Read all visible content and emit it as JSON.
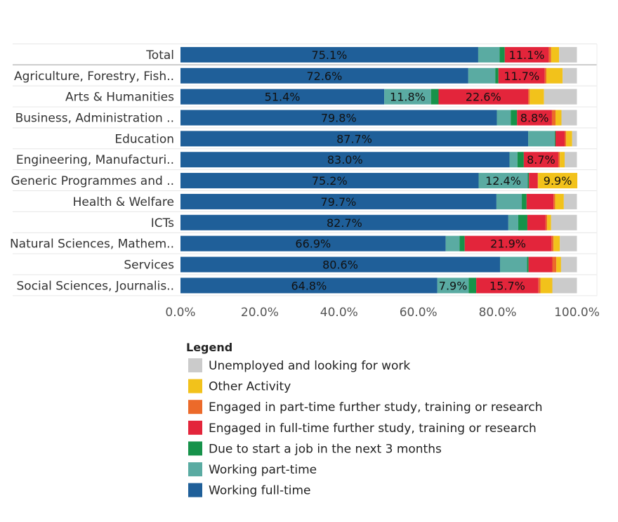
{
  "chart_data": {
    "type": "bar",
    "orientation": "horizontal",
    "stacked": true,
    "title": "",
    "xlabel": "",
    "ylabel": "",
    "xlim": [
      0,
      100
    ],
    "x_ticks": [
      "0.0%",
      "20.0%",
      "40.0%",
      "60.0%",
      "80.0%",
      "100.0%"
    ],
    "categories": [
      "Total",
      "Agriculture, Forestry, Fish..",
      "Arts & Humanities",
      "Business, Administration ..",
      "Education",
      "Engineering, Manufacturi..",
      "Generic Programmes and ..",
      "Health & Welfare",
      "ICTs",
      "Natural Sciences, Mathem..",
      "Services",
      "Social Sciences, Journalis.."
    ],
    "series": [
      {
        "name": "Working full-time",
        "color": "#1f5f99",
        "values": [
          75.1,
          72.6,
          51.4,
          79.8,
          87.7,
          83.0,
          75.2,
          79.7,
          82.7,
          66.9,
          80.6,
          64.8
        ]
      },
      {
        "name": "Working part-time",
        "color": "#5aaba2",
        "values": [
          5.4,
          6.8,
          11.8,
          3.5,
          6.7,
          2.0,
          12.4,
          6.4,
          2.5,
          3.5,
          6.8,
          7.9
        ]
      },
      {
        "name": "Due to start a job in the next 3 months",
        "color": "#16924a",
        "values": [
          1.3,
          0.8,
          1.9,
          1.6,
          0.2,
          1.6,
          0.3,
          1.2,
          2.3,
          1.3,
          0.4,
          1.9
        ]
      },
      {
        "name": "Engaged in full-time further study, training or research",
        "color": "#e3253b",
        "values": [
          11.1,
          11.7,
          22.6,
          8.8,
          2.3,
          8.7,
          2.2,
          6.8,
          4.6,
          21.9,
          6.0,
          15.7
        ]
      },
      {
        "name": "Engaged in part-time further study, training or research",
        "color": "#ec6a2a",
        "values": [
          0.6,
          0.4,
          0.4,
          0.9,
          0.4,
          0.4,
          0.1,
          0.4,
          0.4,
          0.5,
          1.0,
          0.5
        ]
      },
      {
        "name": "Other Activity",
        "color": "#f2c21b",
        "values": [
          2.0,
          4.1,
          3.6,
          1.5,
          1.5,
          1.2,
          9.9,
          2.2,
          1.0,
          1.6,
          1.2,
          3.0
        ]
      },
      {
        "name": "Unemployed and looking for work",
        "color": "#cbcbcb",
        "values": [
          4.5,
          3.6,
          8.3,
          3.9,
          1.2,
          3.1,
          0.0,
          3.3,
          6.5,
          4.3,
          4.0,
          6.2
        ]
      }
    ],
    "data_labels": [
      [
        "75.1%",
        "",
        "",
        "11.1%",
        "",
        "",
        ""
      ],
      [
        "72.6%",
        "",
        "",
        "11.7%",
        "",
        "",
        ""
      ],
      [
        "51.4%",
        "11.8%",
        "",
        "22.6%",
        "",
        "",
        ""
      ],
      [
        "79.8%",
        "",
        "",
        "8.8%",
        "",
        "",
        ""
      ],
      [
        "87.7%",
        "",
        "",
        "",
        "",
        "",
        ""
      ],
      [
        "83.0%",
        "",
        "",
        "8.7%",
        "",
        "",
        ""
      ],
      [
        "75.2%",
        "12.4%",
        "",
        "",
        "",
        "9.9%",
        ""
      ],
      [
        "79.7%",
        "",
        "",
        "",
        "",
        "",
        ""
      ],
      [
        "82.7%",
        "",
        "",
        "",
        "",
        "",
        ""
      ],
      [
        "66.9%",
        "",
        "",
        "21.9%",
        "",
        "",
        ""
      ],
      [
        "80.6%",
        "",
        "",
        "",
        "",
        "",
        ""
      ],
      [
        "64.8%",
        "7.9%",
        "",
        "15.7%",
        "",
        "",
        ""
      ]
    ],
    "legend": {
      "title": "Legend",
      "position": "bottom-left",
      "entries": [
        {
          "label": "Unemployed and looking for work",
          "color": "#cbcbcb"
        },
        {
          "label": "Other Activity",
          "color": "#f2c21b"
        },
        {
          "label": "Engaged in part-time further study, training or research",
          "color": "#ec6a2a"
        },
        {
          "label": "Engaged in full-time further study, training or research",
          "color": "#e3253b"
        },
        {
          "label": "Due to start a job in the next 3 months",
          "color": "#16924a"
        },
        {
          "label": "Working part-time",
          "color": "#5aaba2"
        },
        {
          "label": "Working full-time",
          "color": "#1f5f99"
        }
      ]
    }
  }
}
